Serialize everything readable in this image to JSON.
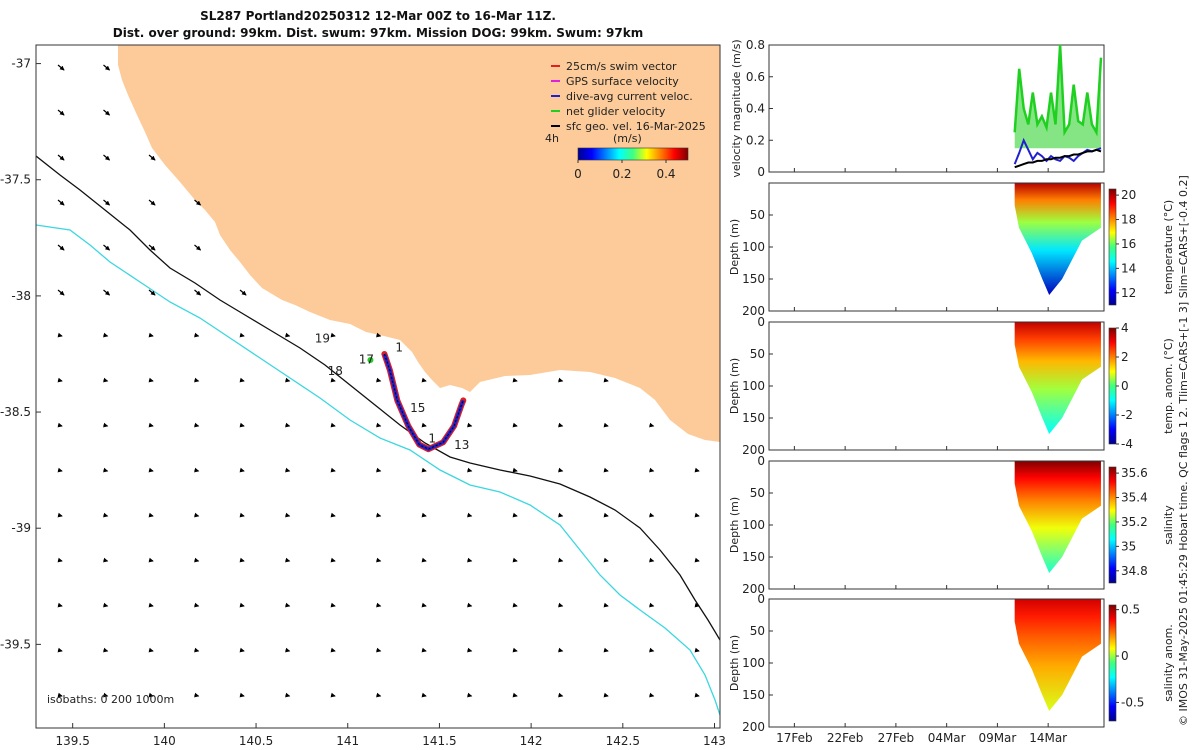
{
  "colors": {
    "land": "#fccb99",
    "isobath_200": "#111111",
    "isobath_1000": "#3ad7e0",
    "swim": "#e02020",
    "gps": "#e020e0",
    "dive_avg": "#2020d0",
    "net": "#20d020",
    "geo": "#000000"
  },
  "chart_data": [
    {
      "type": "map",
      "title": "SL287 Portland20250312 12-Mar 00Z to 16-Mar 11Z.",
      "subtitle": "Dist. over ground: 99km. Dist. swum: 97km. Mission DOG: 99km. Swum: 97km",
      "x_ticks": [
        "139.5",
        "140",
        "140.5",
        "141",
        "141.5",
        "142",
        "142.5",
        "143"
      ],
      "x_values": [
        139.5,
        140,
        140.5,
        141,
        141.5,
        142,
        142.5,
        143
      ],
      "y_ticks": [
        "-37",
        "-37.5",
        "-38",
        "-38.5",
        "-39",
        "-39.5"
      ],
      "y_values": [
        -37,
        -37.5,
        -38,
        -38.5,
        -39,
        -39.5
      ],
      "xlim": [
        139.3,
        143.03
      ],
      "ylim": [
        -39.86,
        -36.92
      ],
      "legend": [
        {
          "label": "25cm/s swim vector",
          "color": "#e02020"
        },
        {
          "label": "GPS surface velocity",
          "color": "#e020e0"
        },
        {
          "label": "dive-avg current veloc.",
          "color": "#2020d0"
        },
        {
          "label": "net glider velocity",
          "color": "#20d020"
        },
        {
          "label": "sfc geo. vel. 16-Mar-2025",
          "color": "#000000"
        }
      ],
      "colorbar_label": "(m/s)",
      "colorbar_ticks": [
        "0",
        "0.2",
        "0.4"
      ],
      "colorbar_values": [
        0,
        0.2,
        0.4
      ],
      "colorbar_range": [
        0,
        0.5
      ],
      "time_label": "4h",
      "isobath_label": "isobaths: 0   200  1000m",
      "track_labels": [
        {
          "text": "19",
          "lon": 140.82,
          "lat": -38.2
        },
        {
          "text": "18",
          "lon": 140.89,
          "lat": -38.34
        },
        {
          "text": "17",
          "lon": 141.06,
          "lat": -38.29
        },
        {
          "text": "1",
          "lon": 141.26,
          "lat": -38.24
        },
        {
          "text": "15",
          "lon": 141.34,
          "lat": -38.5
        },
        {
          "text": "1",
          "lon": 141.44,
          "lat": -38.63
        },
        {
          "text": "13",
          "lon": 141.58,
          "lat": -38.66
        }
      ],
      "track": [
        [
          141.2,
          -38.25
        ],
        [
          141.23,
          -38.32
        ],
        [
          141.27,
          -38.45
        ],
        [
          141.33,
          -38.56
        ],
        [
          141.39,
          -38.64
        ],
        [
          141.44,
          -38.66
        ],
        [
          141.52,
          -38.63
        ],
        [
          141.58,
          -38.56
        ],
        [
          141.62,
          -38.47
        ],
        [
          141.63,
          -38.45
        ]
      ]
    },
    {
      "type": "line",
      "ylabel": "velocity magnitude (m/s)",
      "yticks": [
        "0",
        "0.2",
        "0.4",
        "0.6",
        "0.8"
      ],
      "yvalues": [
        0,
        0.2,
        0.4,
        0.6,
        0.8
      ],
      "ylim": [
        0,
        0.8
      ],
      "series": [
        {
          "name": "net glider velocity",
          "color": "#20d020",
          "x": [
            37.5,
            38,
            38.5,
            39,
            39.5,
            40,
            40.5,
            41,
            41.5,
            42,
            42.5,
            43,
            43.5,
            44,
            44.5,
            45,
            45.5,
            46,
            46.5,
            47
          ],
          "values": [
            0.25,
            0.65,
            0.4,
            0.3,
            0.5,
            0.3,
            0.35,
            0.28,
            0.5,
            0.3,
            0.8,
            0.25,
            0.3,
            0.55,
            0.32,
            0.3,
            0.5,
            0.3,
            0.25,
            0.72
          ]
        },
        {
          "name": "dive-avg current veloc.",
          "color": "#2020d0",
          "x": [
            37.5,
            38,
            38.5,
            39,
            39.5,
            40,
            40.5,
            41,
            41.5,
            42,
            42.5,
            43,
            43.5,
            44,
            44.5,
            45,
            45.5,
            46,
            46.5,
            47
          ],
          "values": [
            0.05,
            0.12,
            0.2,
            0.14,
            0.08,
            0.12,
            0.1,
            0.07,
            0.1,
            0.08,
            0.07,
            0.1,
            0.09,
            0.07,
            0.1,
            0.12,
            0.14,
            0.13,
            0.14,
            0.15
          ]
        },
        {
          "name": "sfc geo. vel.",
          "color": "#000000",
          "x": [
            37.5,
            38,
            38.5,
            39,
            39.5,
            40,
            40.5,
            41,
            41.5,
            42,
            42.5,
            43,
            43.5,
            44,
            44.5,
            45,
            45.5,
            46,
            46.5,
            47
          ],
          "values": [
            0.03,
            0.04,
            0.05,
            0.06,
            0.06,
            0.07,
            0.07,
            0.08,
            0.08,
            0.09,
            0.09,
            0.1,
            0.1,
            0.11,
            0.11,
            0.12,
            0.13,
            0.13,
            0.14,
            0.13
          ]
        }
      ]
    },
    {
      "type": "heatmap",
      "ylabel": "Depth (m)",
      "yticks": [
        "50",
        "100",
        "150",
        "200"
      ],
      "yvalues": [
        50,
        100,
        150,
        200
      ],
      "colorbar_label": "temperature (°C)",
      "colorbar_ticks": [
        "12",
        "14",
        "16",
        "18",
        "20"
      ],
      "colorbar_values": [
        12,
        14,
        16,
        18,
        20
      ],
      "range": [
        11,
        20.5
      ],
      "surface_value": 20,
      "deep_value": 11.5
    },
    {
      "type": "heatmap",
      "ylabel": "Depth (m)",
      "yticks": [
        "0",
        "50",
        "100",
        "150",
        "200"
      ],
      "yvalues": [
        0,
        50,
        100,
        150,
        200
      ],
      "colorbar_label": "temp. anom. (°C)",
      "colorbar_ticks": [
        "-4",
        "-2",
        "0",
        "2",
        "4"
      ],
      "colorbar_values": [
        -4,
        -2,
        0,
        2,
        4
      ],
      "range": [
        -4,
        4
      ],
      "surface_value": 3.5,
      "deep_value": -1
    },
    {
      "type": "heatmap",
      "ylabel": "Depth (m)",
      "yticks": [
        "0",
        "50",
        "100",
        "150",
        "200"
      ],
      "yvalues": [
        0,
        50,
        100,
        150,
        200
      ],
      "colorbar_label": "salinity",
      "colorbar_ticks": [
        "34.8",
        "35",
        "35.2",
        "35.4",
        "35.6"
      ],
      "colorbar_values": [
        34.8,
        35,
        35.2,
        35.4,
        35.6
      ],
      "range": [
        34.7,
        35.65
      ],
      "surface_value": 35.65,
      "deep_value": 35.1
    },
    {
      "type": "heatmap",
      "ylabel": "Depth (m)",
      "yticks": [
        "0",
        "50",
        "100",
        "150",
        "200"
      ],
      "yvalues": [
        0,
        50,
        100,
        150,
        200
      ],
      "colorbar_label": "salinity anom.",
      "colorbar_ticks": [
        "-0.5",
        "0",
        "0.5"
      ],
      "colorbar_values": [
        -0.5,
        0,
        0.5
      ],
      "range": [
        -0.7,
        0.55
      ],
      "surface_value": 0.45,
      "deep_value": 0.05
    }
  ],
  "time_axis": {
    "ticks": [
      "17Feb",
      "22Feb",
      "27Feb",
      "04Mar",
      "09Mar",
      "14Mar"
    ],
    "values": [
      17,
      22,
      27,
      32,
      37,
      42
    ],
    "range": [
      14.5,
      47.5
    ],
    "data_start": 38.7,
    "data_end": 47.2
  },
  "side_label": "© IMOS 31-May-2025 01:45:29 Hobart time. QC flags 1  2. Tlim=CARS+[-1 3] Slim=CARS+[-0.4 0.2]"
}
